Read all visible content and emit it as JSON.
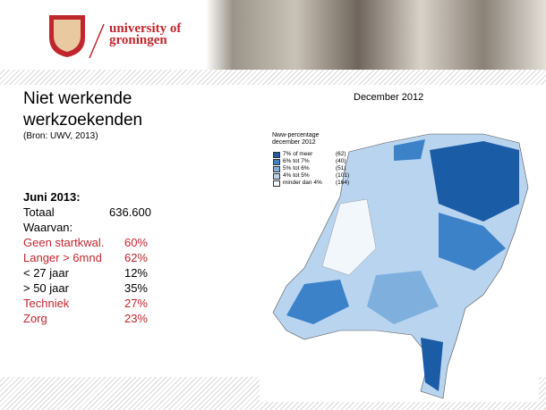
{
  "header": {
    "logo_line1": "university of",
    "logo_line2": "groningen"
  },
  "title": {
    "line1": "Niet werkende",
    "line2": "werkzoekenden",
    "source": "(Bron: UWV, 2013)"
  },
  "stats": {
    "heading": "Juni 2013:",
    "total_label": "Totaal",
    "total_value": "636.600",
    "subheading": "Waarvan:",
    "rows": [
      {
        "label": "Geen startkwal.",
        "value": "60%",
        "highlight": true
      },
      {
        "label": "Langer > 6mnd",
        "value": "62%",
        "highlight": true
      },
      {
        "label": "< 27 jaar",
        "value": "12%",
        "highlight": false
      },
      {
        "label": "> 50 jaar",
        "value": "35%",
        "highlight": false
      },
      {
        "label": "Techniek",
        "value": "27%",
        "highlight": true
      },
      {
        "label": "Zorg",
        "value": "23%",
        "highlight": true
      }
    ]
  },
  "map": {
    "caption": "December 2012",
    "legend_title1": "Nww-percentage",
    "legend_title2": "december 2012",
    "legend": [
      {
        "label": "7% of meer",
        "count": "(62)",
        "color": "#1a5ca6"
      },
      {
        "label": "6% tot 7%",
        "count": "(40)",
        "color": "#3b82c9"
      },
      {
        "label": "5% tot 6%",
        "count": "(51)",
        "color": "#7fb0dd"
      },
      {
        "label": "4% tot 5%",
        "count": "(101)",
        "color": "#b9d4ee"
      },
      {
        "label": "minder dan 4%",
        "count": "(164)",
        "color": "#f2f7fc"
      }
    ]
  }
}
